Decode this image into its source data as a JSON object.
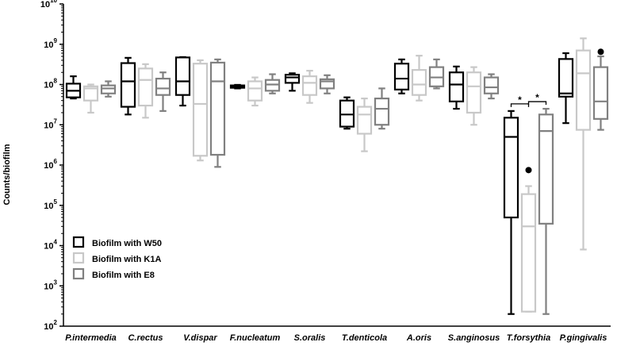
{
  "chart_data": {
    "type": "box",
    "ylabel": "Counts/biofilm",
    "yscale": "log",
    "ylim": [
      100,
      10000000000
    ],
    "ytick_labels": [
      {
        "base": "10",
        "exp": "2"
      },
      {
        "base": "10",
        "exp": "3"
      },
      {
        "base": "10",
        "exp": "4"
      },
      {
        "base": "10",
        "exp": "5"
      },
      {
        "base": "10",
        "exp": "6"
      },
      {
        "base": "10",
        "exp": "7"
      },
      {
        "base": "10",
        "exp": "8"
      },
      {
        "base": "10",
        "exp": "9"
      },
      {
        "base": "10",
        "exp": "10"
      }
    ],
    "categories": [
      "P.intermedia",
      "C.rectus",
      "V.dispar",
      "F.nucleatum",
      "S.oralis",
      "T.denticola",
      "A.oris",
      "S.anginosus",
      "T.forsythia",
      "P.gingivalis"
    ],
    "legend_position": "lower-left",
    "series": [
      {
        "name": "Biofilm with W50",
        "color": "#000000",
        "boxes": [
          {
            "min": 45000000,
            "q1": 48000000,
            "median": 70000000,
            "q3": 105000000,
            "max": 160000000
          },
          {
            "min": 18000000,
            "q1": 28000000,
            "median": 120000000,
            "q3": 340000000,
            "max": 460000000
          },
          {
            "min": 30000000,
            "q1": 55000000,
            "median": 120000000,
            "q3": 470000000,
            "max": 480000000
          },
          {
            "min": 80000000,
            "q1": 83000000,
            "median": 90000000,
            "q3": 95000000,
            "max": 98000000
          },
          {
            "min": 70000000,
            "q1": 110000000,
            "median": 150000000,
            "q3": 175000000,
            "max": 190000000
          },
          {
            "min": 8000000,
            "q1": 9000000,
            "median": 18000000,
            "q3": 40000000,
            "max": 48000000
          },
          {
            "min": 60000000,
            "q1": 75000000,
            "median": 140000000,
            "q3": 330000000,
            "max": 420000000
          },
          {
            "min": 25000000,
            "q1": 38000000,
            "median": 100000000,
            "q3": 200000000,
            "max": 280000000
          },
          {
            "min": 200,
            "q1": 50000,
            "median": 5000000,
            "q3": 15000000,
            "max": 22000000
          },
          {
            "min": 11000000,
            "q1": 50000000,
            "median": 60000000,
            "q3": 430000000,
            "max": 600000000
          }
        ],
        "outliers": []
      },
      {
        "name": "Biofilm with K1A",
        "color": "#c8c8c8",
        "boxes": [
          {
            "min": 20000000,
            "q1": 40000000,
            "median": 80000000,
            "q3": 90000000,
            "max": 100000000
          },
          {
            "min": 15000000,
            "q1": 30000000,
            "median": 130000000,
            "q3": 250000000,
            "max": 320000000
          },
          {
            "min": 1300000,
            "q1": 1700000,
            "median": 33000000,
            "q3": 330000000,
            "max": 400000000
          },
          {
            "min": 30000000,
            "q1": 40000000,
            "median": 80000000,
            "q3": 120000000,
            "max": 150000000
          },
          {
            "min": 35000000,
            "q1": 55000000,
            "median": 110000000,
            "q3": 160000000,
            "max": 220000000
          },
          {
            "min": 2200000,
            "q1": 6000000,
            "median": 18000000,
            "q3": 28000000,
            "max": 45000000
          },
          {
            "min": 40000000,
            "q1": 55000000,
            "median": 100000000,
            "q3": 230000000,
            "max": 520000000
          },
          {
            "min": 10000000,
            "q1": 20000000,
            "median": 90000000,
            "q3": 200000000,
            "max": 270000000
          },
          {
            "min": 230,
            "q1": 230,
            "median": 30000,
            "q3": 190000,
            "max": 300000
          },
          {
            "min": 8000,
            "q1": 7500000,
            "median": 190000000,
            "q3": 700000000,
            "max": 1400000000
          }
        ],
        "outliers": [
          {
            "category": "T.forsythia",
            "value": 750000
          }
        ]
      },
      {
        "name": "Biofilm with E8",
        "color": "#808080",
        "boxes": [
          {
            "min": 50000000,
            "q1": 60000000,
            "median": 80000000,
            "q3": 95000000,
            "max": 120000000
          },
          {
            "min": 22000000,
            "q1": 55000000,
            "median": 80000000,
            "q3": 140000000,
            "max": 200000000
          },
          {
            "min": 900000,
            "q1": 1800000,
            "median": 120000000,
            "q3": 350000000,
            "max": 420000000
          },
          {
            "min": 60000000,
            "q1": 70000000,
            "median": 100000000,
            "q3": 130000000,
            "max": 180000000
          },
          {
            "min": 60000000,
            "q1": 80000000,
            "median": 120000000,
            "q3": 135000000,
            "max": 170000000
          },
          {
            "min": 8000000,
            "q1": 10000000,
            "median": 25000000,
            "q3": 45000000,
            "max": 80000000
          },
          {
            "min": 80000000,
            "q1": 90000000,
            "median": 150000000,
            "q3": 270000000,
            "max": 420000000
          },
          {
            "min": 45000000,
            "q1": 60000000,
            "median": 85000000,
            "q3": 150000000,
            "max": 180000000
          },
          {
            "min": 200,
            "q1": 35000,
            "median": 7000000,
            "q3": 18000000,
            "max": 25000000
          },
          {
            "min": 7500000,
            "q1": 14000000,
            "median": 38000000,
            "q3": 270000000,
            "max": 500000000
          }
        ],
        "outliers": [
          {
            "category": "P.gingivalis",
            "value": 650000000
          }
        ]
      }
    ],
    "significance": [
      {
        "category": "T.forsythia",
        "between": [
          "Biofilm with W50",
          "Biofilm with K1A"
        ],
        "label": "*"
      },
      {
        "category": "T.forsythia",
        "between": [
          "Biofilm with K1A",
          "Biofilm with E8"
        ],
        "label": "*"
      }
    ]
  }
}
